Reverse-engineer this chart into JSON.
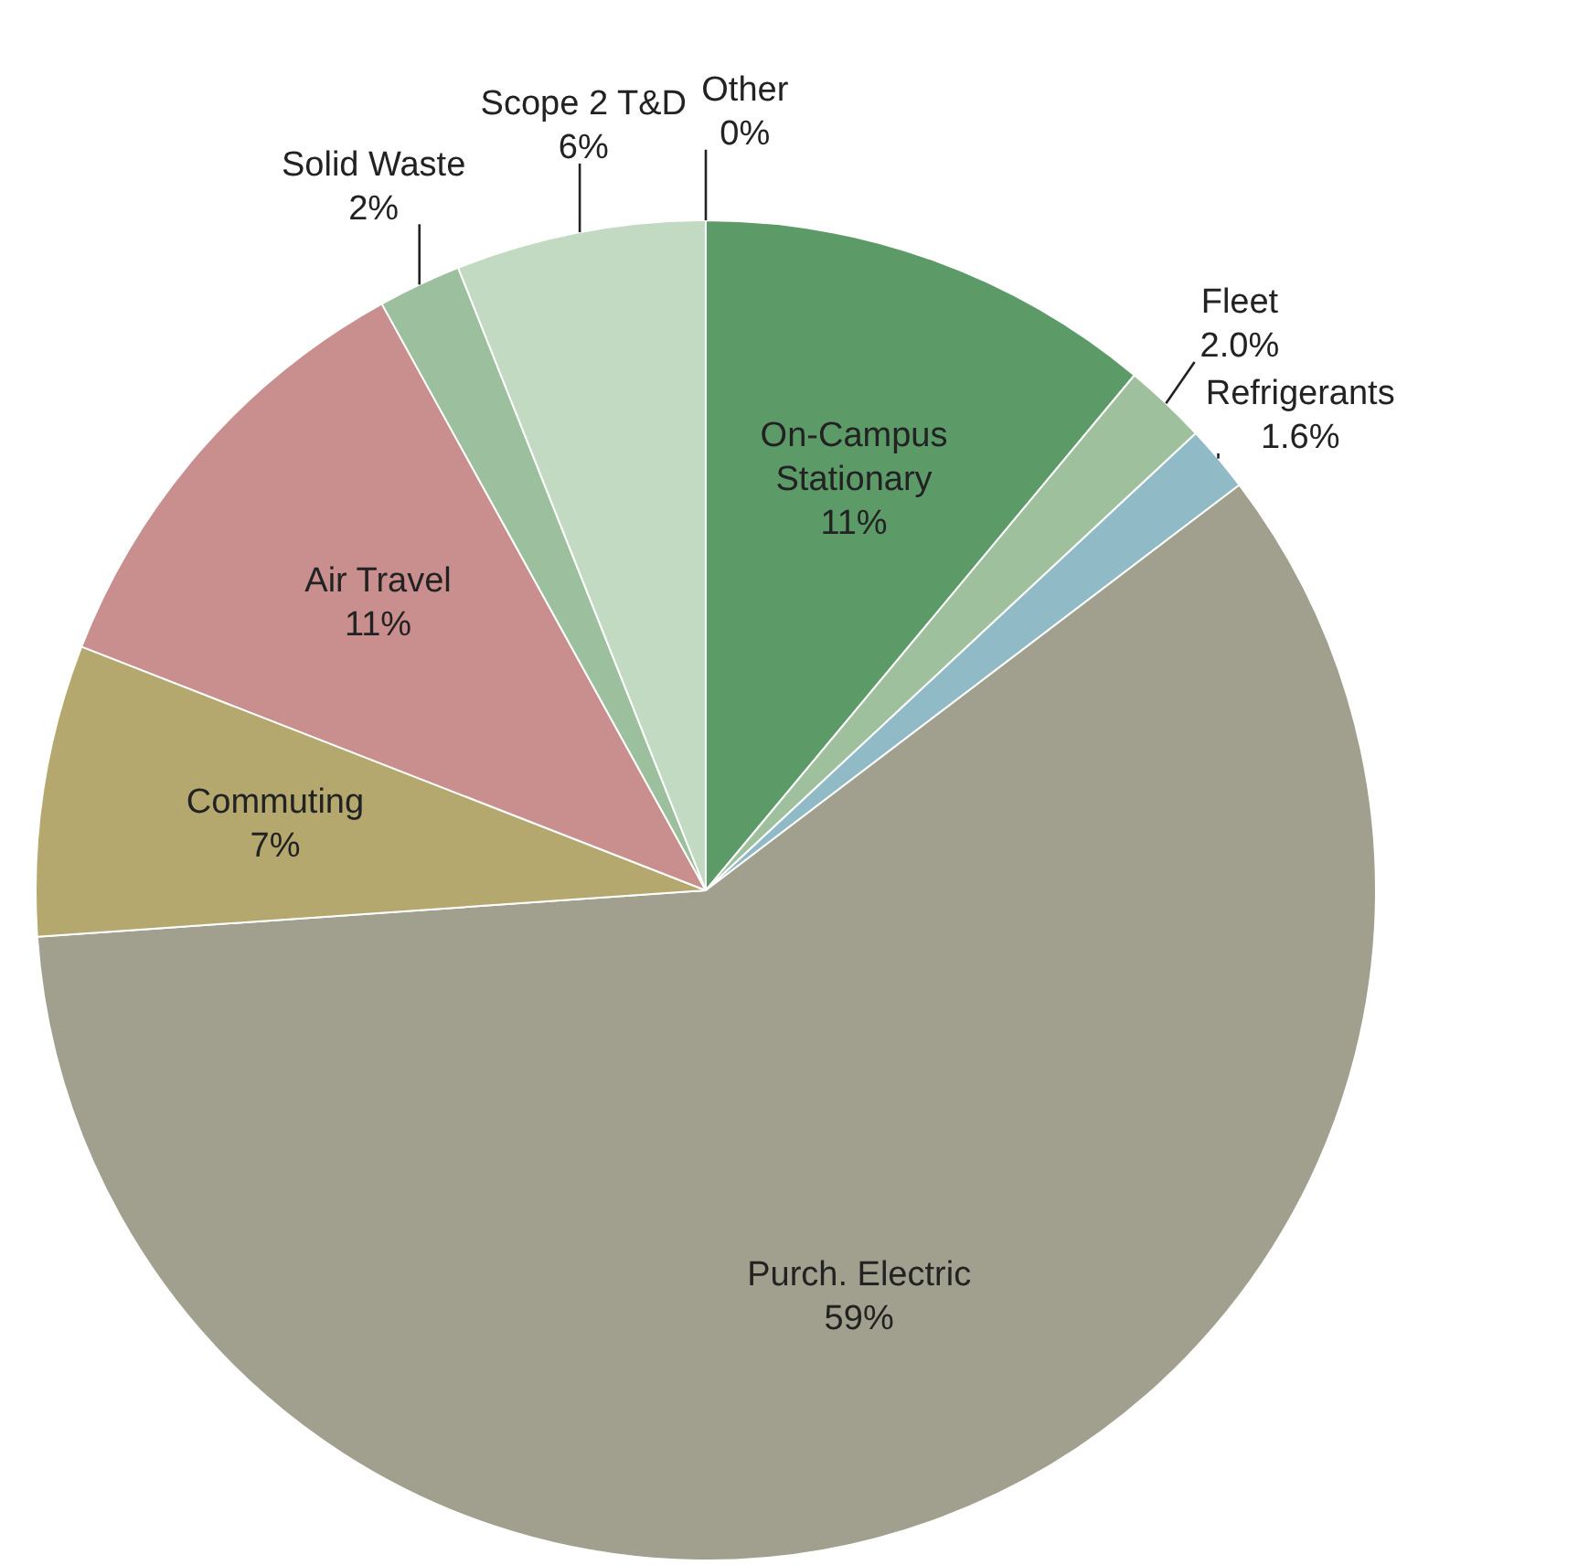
{
  "chart_data": {
    "type": "pie",
    "categories": [
      "On-Campus Stationary",
      "Fleet",
      "Refrigerants",
      "Purch. Electric",
      "Commuting",
      "Air Travel",
      "Solid Waste",
      "Scope 2 T&D",
      "Other"
    ],
    "values": [
      11,
      2.0,
      1.6,
      59,
      7,
      11,
      2,
      6,
      0
    ],
    "value_labels": [
      "11%",
      "2.0%",
      "1.6%",
      "59%",
      "7%",
      "11%",
      "2%",
      "6%",
      "0%"
    ],
    "colors": [
      "#5c9a68",
      "#9fc09c",
      "#8fbac6",
      "#a19f8d",
      "#b4a86f",
      "#c98f8e",
      "#9cbf9d",
      "#c2dac1",
      "#e6efe6"
    ]
  }
}
